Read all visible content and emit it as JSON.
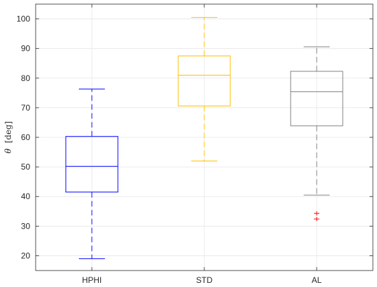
{
  "chart_data": {
    "type": "box",
    "categories": [
      "HPHI",
      "STD",
      "AL"
    ],
    "ylabel_symbol": "θ",
    "ylabel_unit": "[deg]",
    "ylim": [
      15,
      105
    ],
    "yticks": [
      20,
      30,
      40,
      50,
      60,
      70,
      80,
      90,
      100
    ],
    "grid": true,
    "series": [
      {
        "category": "HPHI",
        "min": 19,
        "q1": 41.5,
        "median": 50.2,
        "q3": 60.3,
        "max": 76.3,
        "outliers": [],
        "color": "#0000ff"
      },
      {
        "category": "STD",
        "min": 52,
        "q1": 70.6,
        "median": 81,
        "q3": 87.5,
        "max": 100.5,
        "outliers": [],
        "color": "#ffbf00"
      },
      {
        "category": "AL",
        "min": 40.5,
        "q1": 63.9,
        "median": 75.4,
        "q3": 82.3,
        "max": 90.6,
        "outliers": [
          34.3,
          32.4
        ],
        "color": "#808080"
      }
    ],
    "outlier_color": "#ff0000"
  }
}
